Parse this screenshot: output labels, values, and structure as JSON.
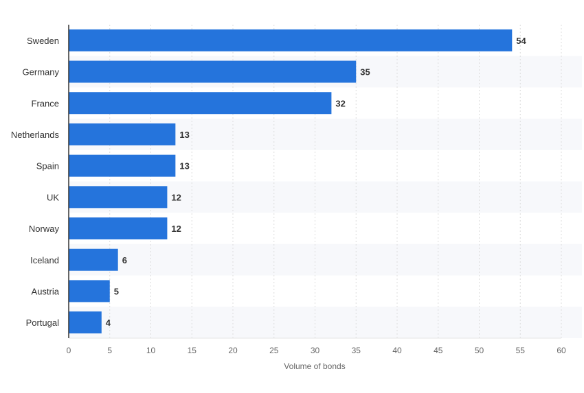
{
  "chart_data": {
    "type": "bar",
    "orientation": "horizontal",
    "categories": [
      "Sweden",
      "Germany",
      "France",
      "Netherlands",
      "Spain",
      "UK",
      "Norway",
      "Iceland",
      "Austria",
      "Portugal"
    ],
    "values": [
      54,
      35,
      32,
      13,
      13,
      12,
      12,
      6,
      5,
      4
    ],
    "title": "",
    "xlabel": "Volume of bonds",
    "ylabel": "",
    "xlim": [
      0,
      60
    ],
    "xticks": [
      0,
      5,
      10,
      15,
      20,
      25,
      30,
      35,
      40,
      45,
      50,
      55,
      60
    ],
    "grid": true,
    "data_labels": true,
    "bar_color": "#2574dc"
  }
}
